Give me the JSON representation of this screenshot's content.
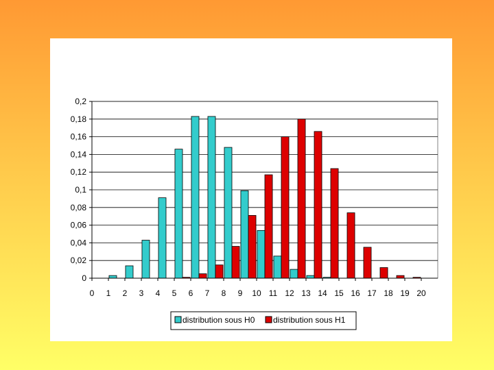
{
  "chart_data": {
    "type": "bar",
    "title": "",
    "xlabel": "",
    "ylabel": "",
    "categories": [
      "0",
      "1",
      "2",
      "3",
      "4",
      "5",
      "6",
      "7",
      "8",
      "9",
      "10",
      "11",
      "12",
      "13",
      "14",
      "15",
      "16",
      "17",
      "18",
      "19",
      "20"
    ],
    "y_tick_labels": [
      "0",
      "0,02",
      "0,04",
      "0,06",
      "0,08",
      "0,1",
      "0,12",
      "0,14",
      "0,16",
      "0,18",
      "0,2"
    ],
    "ylim": [
      0,
      0.2
    ],
    "grid": true,
    "legend_position": "bottom",
    "series": [
      {
        "name": "distribution sous H0",
        "color": "#33cccc",
        "values": [
          0.0,
          0.003,
          0.014,
          0.043,
          0.091,
          0.146,
          0.183,
          0.183,
          0.148,
          0.099,
          0.054,
          0.025,
          0.01,
          0.003,
          0.001,
          0.0,
          0.0,
          0.0,
          0.0,
          0.0,
          0.0
        ]
      },
      {
        "name": "distribution sous H1",
        "color": "#dd0000",
        "values": [
          0.0,
          0.0,
          0.0,
          0.0,
          0.0,
          0.001,
          0.005,
          0.015,
          0.036,
          0.071,
          0.117,
          0.16,
          0.18,
          0.166,
          0.124,
          0.074,
          0.035,
          0.012,
          0.003,
          0.001,
          0.0
        ]
      }
    ]
  }
}
